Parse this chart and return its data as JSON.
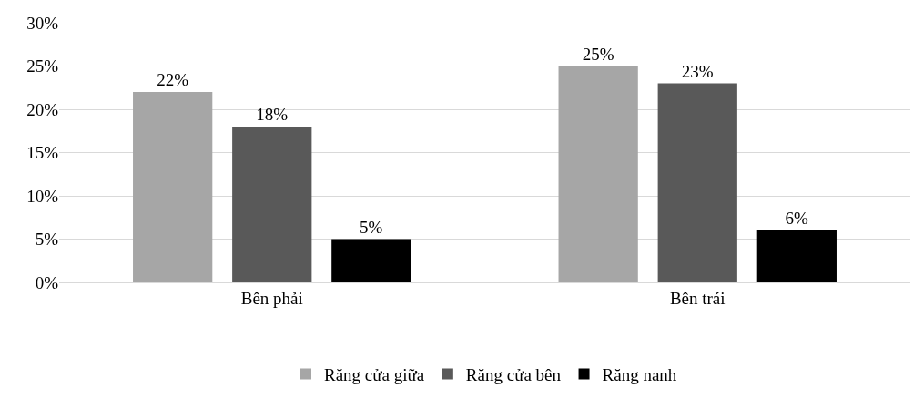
{
  "chart_data": {
    "type": "bar",
    "categories": [
      "Bên phải",
      "Bên trái"
    ],
    "series": [
      {
        "name": "Răng cửa giữa",
        "color": "#a6a6a6",
        "values": [
          22,
          25
        ],
        "value_labels": [
          "22%",
          "25%"
        ]
      },
      {
        "name": "Răng cửa bên",
        "color": "#595959",
        "values": [
          18,
          23
        ],
        "value_labels": [
          "18%",
          "23%"
        ]
      },
      {
        "name": "Răng nanh",
        "color": "#000000",
        "values": [
          5,
          6
        ],
        "value_labels": [
          "5%",
          "6%"
        ]
      }
    ],
    "ylim": [
      0,
      30
    ],
    "yticks": [
      {
        "value": 0,
        "label": "0%"
      },
      {
        "value": 5,
        "label": "5%"
      },
      {
        "value": 10,
        "label": "10%"
      },
      {
        "value": 15,
        "label": "15%"
      },
      {
        "value": 20,
        "label": "20%"
      },
      {
        "value": 25,
        "label": "25%"
      },
      {
        "value": 30,
        "label": "30%"
      }
    ],
    "grid": "y",
    "legend": "bottom"
  }
}
